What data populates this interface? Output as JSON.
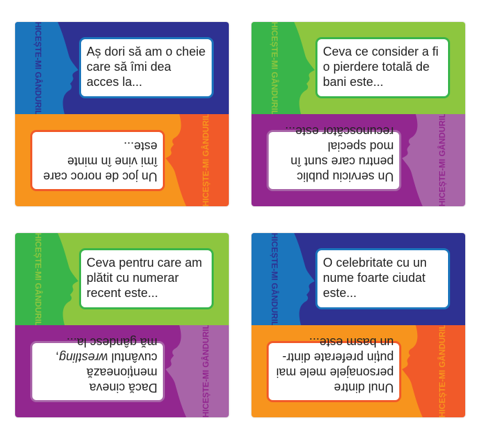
{
  "logo_text": "GHICEȘTE-MI GÂNDURILE",
  "colors": {
    "blue": "#2e3192",
    "blue_face": "#1b75bc",
    "orange": "#f7941d",
    "orange_face": "#f15a29",
    "green": "#8dc63f",
    "green_face": "#39b54a",
    "purple": "#92278f",
    "purple_face": "#a864a8"
  },
  "cards": [
    {
      "top": {
        "text": "Aș dori să am o cheie care să îmi dea acces la...",
        "theme": "blue"
      },
      "bottom": {
        "text": "Un joc de noroc care îmi vine în minte este...",
        "theme": "orange"
      }
    },
    {
      "top": {
        "text": "Ceva ce consider a fi o pierdere totală de bani este...",
        "theme": "green"
      },
      "bottom": {
        "text": "Un serviciu public pentru care sunt în mod special recunoscător este...",
        "theme": "purple"
      }
    },
    {
      "top": {
        "text": "Ceva pentru care am plătit cu numerar recent este...",
        "theme": "green"
      },
      "bottom": {
        "text_before": "Dacă cineva menționează cuvântul ",
        "text_italic": "wrestling",
        "text_after": ", mă gândesc la...",
        "theme": "purple"
      }
    },
    {
      "top": {
        "text": "O celebritate cu un nume foarte ciudat este...",
        "theme": "blue"
      },
      "bottom": {
        "text": "Unul dintre personajele mele mai puțin preferate dintr-un basm este...",
        "theme": "orange"
      }
    }
  ]
}
